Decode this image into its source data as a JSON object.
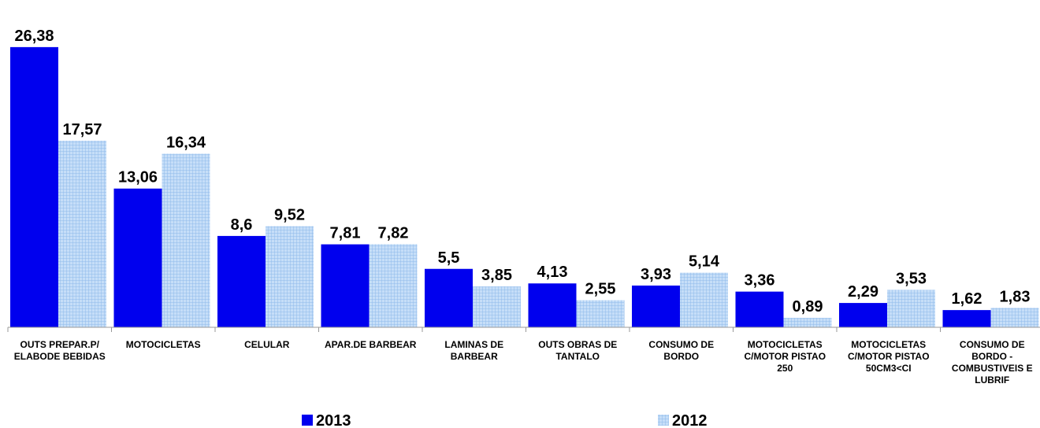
{
  "chart_data": {
    "type": "bar",
    "categories": [
      "OUTS PREPAR.P/ ELABODE BEBIDAS",
      "MOTOCICLETAS",
      "CELULAR",
      "APAR.DE BARBEAR",
      "LAMINAS DE BARBEAR",
      "OUTS OBRAS DE TANTALO",
      "CONSUMO DE BORDO",
      "MOTOCICLETAS C/MOTOR PISTAO 250",
      "MOTOCICLETAS C/MOTOR PISTAO 50CM3<CI",
      "CONSUMO DE BORDO - COMBUSTIVEIS E LUBRIF"
    ],
    "series": [
      {
        "name": "2013",
        "color": "#0000ee",
        "values": [
          26.38,
          13.06,
          8.6,
          7.81,
          5.5,
          4.13,
          3.93,
          3.36,
          2.29,
          1.62
        ],
        "value_labels": [
          "26,38",
          "13,06",
          "8,6",
          "7,81",
          "5,5",
          "4,13",
          "3,93",
          "3,36",
          "2,29",
          "1,62"
        ]
      },
      {
        "name": "2012",
        "color": "#a9cdf5",
        "values": [
          17.57,
          16.34,
          9.52,
          7.82,
          3.85,
          2.55,
          5.14,
          0.89,
          3.53,
          1.83
        ],
        "value_labels": [
          "17,57",
          "16,34",
          "9,52",
          "7,82",
          "3,85",
          "2,55",
          "5,14",
          "0,89",
          "3,53",
          "1,83"
        ]
      }
    ],
    "ylim": [
      0,
      30
    ],
    "legend": "bottom"
  }
}
